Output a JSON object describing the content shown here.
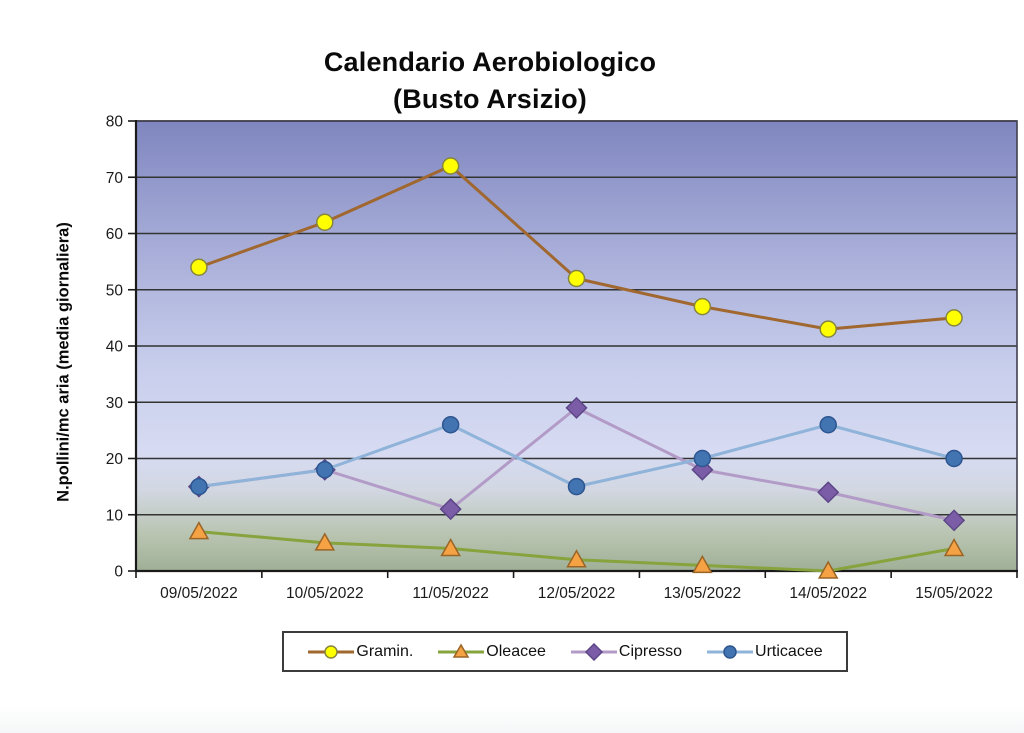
{
  "page": {
    "title_line1": "Calendario Aerobiologico",
    "title_line2": "(Busto Arsizio)"
  },
  "chart_data": {
    "type": "line",
    "title": "Calendario Aerobiologico (Busto Arsizio)",
    "ylabel": "N.pollini/mc aria (media giornaliera)",
    "xlabel": "",
    "ylim": [
      0,
      80
    ],
    "yticks": [
      0,
      10,
      20,
      30,
      40,
      50,
      60,
      70,
      80
    ],
    "grid": true,
    "legend_position": "bottom",
    "categories": [
      "09/05/2022",
      "10/05/2022",
      "11/05/2022",
      "12/05/2022",
      "13/05/2022",
      "14/05/2022",
      "15/05/2022"
    ],
    "series": [
      {
        "name": "Gramin.",
        "values": [
          54,
          62,
          72,
          52,
          47,
          43,
          45
        ],
        "line_color": "#A0672F",
        "marker": "circle",
        "marker_fill": "#FFFF00",
        "marker_stroke": "#85853F"
      },
      {
        "name": "Oleacee",
        "values": [
          7,
          5,
          4,
          2,
          1,
          0,
          4
        ],
        "line_color": "#87A33D",
        "marker": "triangle",
        "marker_fill": "#F4A244",
        "marker_stroke": "#9A6426"
      },
      {
        "name": "Cipresso",
        "values": [
          15,
          18,
          11,
          29,
          18,
          14,
          9
        ],
        "line_color": "#B29BC7",
        "marker": "diamond",
        "marker_fill": "#7B5CA6",
        "marker_stroke": "#5C4687"
      },
      {
        "name": "Urticacee",
        "values": [
          15,
          18,
          26,
          15,
          20,
          26,
          20
        ],
        "line_color": "#8FB3D9",
        "marker": "circle",
        "marker_fill": "#4274B1",
        "marker_stroke": "#2D5590"
      }
    ],
    "colors": {
      "gridline": "#333333",
      "plot_border": "#40404E",
      "axis": "#1a1a1a",
      "tick_text": "#1a1a1a",
      "legend_border": "#3c3c3c"
    },
    "bg_gradient": [
      {
        "o": 0.0,
        "c": "#7F86BF"
      },
      {
        "o": 0.25,
        "c": "#A3A9D5"
      },
      {
        "o": 0.55,
        "c": "#C8CEEC"
      },
      {
        "o": 0.74,
        "c": "#D7DBF2"
      },
      {
        "o": 0.82,
        "c": "#D2D7E2"
      },
      {
        "o": 0.92,
        "c": "#B9C4B0"
      },
      {
        "o": 1.0,
        "c": "#9FB097"
      }
    ]
  }
}
